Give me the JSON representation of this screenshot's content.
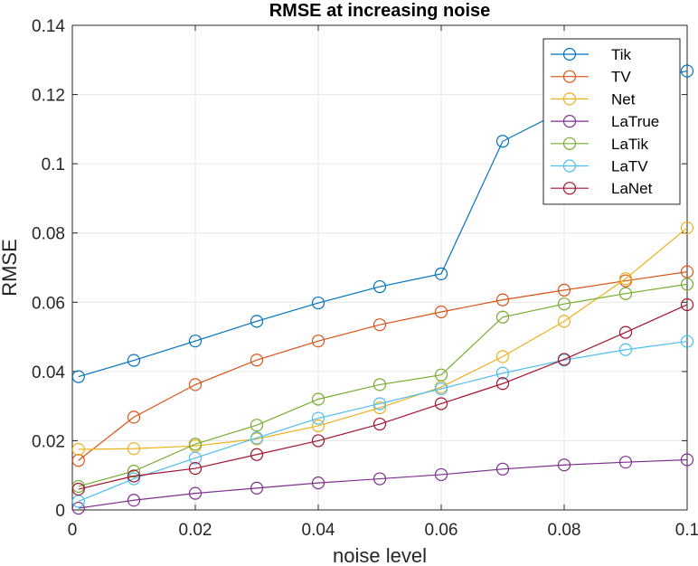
{
  "chart_data": {
    "type": "line",
    "title": "RMSE at increasing noise",
    "xlabel": "noise level",
    "ylabel": "RMSE",
    "xlim": [
      0,
      0.1
    ],
    "ylim": [
      0,
      0.14
    ],
    "xticks": [
      0,
      0.02,
      0.04,
      0.06,
      0.08,
      0.1
    ],
    "xtick_labels": [
      "0",
      "0.02",
      "0.04",
      "0.06",
      "0.08",
      "0.1"
    ],
    "yticks": [
      0,
      0.02,
      0.04,
      0.06,
      0.08,
      0.1,
      0.12,
      0.14
    ],
    "ytick_labels": [
      "0",
      "0.02",
      "0.04",
      "0.06",
      "0.08",
      "0.1",
      "0.12",
      "0.14"
    ],
    "grid": true,
    "legend_position": "top-right",
    "x": [
      0.001,
      0.01,
      0.02,
      0.03,
      0.04,
      0.05,
      0.06,
      0.07,
      0.08,
      0.09,
      0.1
    ],
    "series": [
      {
        "name": "Tik",
        "color": "#0072BD",
        "values": [
          0.0385,
          0.0432,
          0.0488,
          0.0545,
          0.0598,
          0.0645,
          0.0682,
          0.1065,
          0.1155,
          0.123,
          0.1268
        ]
      },
      {
        "name": "TV",
        "color": "#D95319",
        "values": [
          0.0143,
          0.0268,
          0.0362,
          0.0433,
          0.0488,
          0.0535,
          0.0572,
          0.0607,
          0.0635,
          0.0662,
          0.0688
        ]
      },
      {
        "name": "Net",
        "color": "#EDB120",
        "values": [
          0.0175,
          0.0177,
          0.0185,
          0.0205,
          0.0243,
          0.0295,
          0.0355,
          0.0443,
          0.0545,
          0.0668,
          0.0815
        ]
      },
      {
        "name": "LaTrue",
        "color": "#7E2F8E",
        "values": [
          0.0005,
          0.0028,
          0.0048,
          0.0063,
          0.0078,
          0.009,
          0.0102,
          0.0118,
          0.013,
          0.0138,
          0.0145
        ]
      },
      {
        "name": "LaTik",
        "color": "#77AC30",
        "values": [
          0.0068,
          0.0112,
          0.019,
          0.0245,
          0.032,
          0.0362,
          0.039,
          0.0557,
          0.0595,
          0.0625,
          0.0652
        ]
      },
      {
        "name": "LaTV",
        "color": "#4DBEEE",
        "values": [
          0.0025,
          0.009,
          0.015,
          0.0208,
          0.0265,
          0.0307,
          0.035,
          0.0395,
          0.0433,
          0.0463,
          0.0487
        ]
      },
      {
        "name": "LaNet",
        "color": "#A2142F",
        "values": [
          0.006,
          0.0098,
          0.012,
          0.016,
          0.02,
          0.0248,
          0.0307,
          0.0365,
          0.0435,
          0.0513,
          0.0593
        ]
      }
    ]
  }
}
